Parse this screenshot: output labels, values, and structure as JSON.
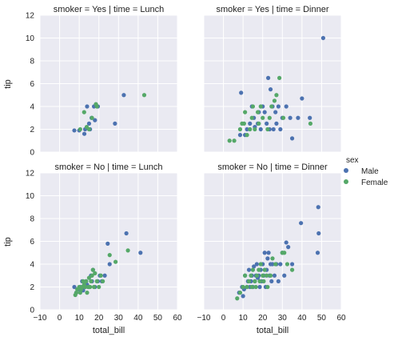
{
  "chart_data": {
    "type": "scatter",
    "grid": true,
    "sharex": true,
    "sharey": true,
    "xlim": [
      -10,
      60
    ],
    "ylim": [
      0,
      12
    ],
    "xticks": [
      "−10",
      "0",
      "10",
      "20",
      "30",
      "40",
      "50",
      "60"
    ],
    "yticks": [
      "0",
      "2",
      "4",
      "6",
      "8",
      "10",
      "12"
    ],
    "xlabel": "total_bill",
    "ylabel": "tip",
    "legend": {
      "title": "sex",
      "placement": "right",
      "entries": [
        {
          "name": "Male",
          "color": "#4c72b0"
        },
        {
          "name": "Female",
          "color": "#55a868"
        }
      ]
    },
    "panels": [
      {
        "title": "smoker = Yes | time = Lunch",
        "row": 0,
        "col": 0,
        "series": [
          {
            "name": "Male",
            "color": "#4c72b0",
            "x": [
              7.5,
              10.0,
              12.6,
              13.0,
              14.0,
              15.0,
              15.5,
              16.3,
              17.5,
              18.0,
              19.5,
              28.2,
              32.7
            ],
            "y": [
              1.9,
              1.9,
              1.6,
              2.0,
              4.0,
              2.5,
              2.0,
              3.0,
              4.0,
              2.8,
              4.0,
              2.5,
              5.0
            ]
          },
          {
            "name": "Female",
            "color": "#55a868",
            "x": [
              10.5,
              12.5,
              13.8,
              15.0,
              16.5,
              18.5,
              19.0,
              43.1
            ],
            "y": [
              2.0,
              3.5,
              2.2,
              2.0,
              3.0,
              4.2,
              4.0,
              5.0
            ]
          }
        ]
      },
      {
        "title": "smoker = Yes | time = Dinner",
        "row": 0,
        "col": 1,
        "series": [
          {
            "name": "Male",
            "color": "#4c72b0",
            "x": [
              8.5,
              9.0,
              11.0,
              12.0,
              13.5,
              14.5,
              15.5,
              16.0,
              17.5,
              18.0,
              19.0,
              20.0,
              21.0,
              22.0,
              22.8,
              23.5,
              24.0,
              25.0,
              25.5,
              26.5,
              27.0,
              28.0,
              29.0,
              30.0,
              32.0,
              34.0,
              35.0,
              38.0,
              40.0,
              44.0,
              50.8
            ],
            "y": [
              1.5,
              5.2,
              1.5,
              2.0,
              2.5,
              4.0,
              3.0,
              2.2,
              2.5,
              3.5,
              2.0,
              4.0,
              3.5,
              2.5,
              6.5,
              2.0,
              5.5,
              4.0,
              2.0,
              3.5,
              2.5,
              4.0,
              2.0,
              3.0,
              4.0,
              3.0,
              1.2,
              3.0,
              4.7,
              3.0,
              10.0
            ]
          },
          {
            "name": "Female",
            "color": "#55a868",
            "x": [
              3.1,
              5.5,
              8.5,
              9.5,
              10.5,
              11.0,
              12.0,
              13.5,
              14.5,
              15.0,
              16.0,
              17.5,
              18.0,
              19.0,
              20.0,
              22.5,
              23.5,
              24.5,
              26.0,
              27.0,
              28.5,
              30.5,
              44.3
            ],
            "y": [
              1.0,
              1.0,
              2.0,
              2.5,
              2.5,
              3.5,
              1.5,
              2.0,
              3.0,
              4.0,
              2.0,
              3.5,
              2.5,
              4.0,
              3.0,
              2.0,
              3.0,
              4.0,
              4.5,
              5.0,
              6.5,
              3.0,
              2.5
            ]
          }
        ]
      },
      {
        "title": "smoker = No | time = Lunch",
        "row": 1,
        "col": 0,
        "series": [
          {
            "name": "Male",
            "color": "#4c72b0",
            "x": [
              7.5,
              8.5,
              9.5,
              10.5,
              11.5,
              12.0,
              13.0,
              13.5,
              14.0,
              15.0,
              16.0,
              16.5,
              17.0,
              18.0,
              19.5,
              20.5,
              21.5,
              23.0,
              24.5,
              25.5,
              34.0,
              41.2
            ],
            "y": [
              2.0,
              1.5,
              1.8,
              2.0,
              2.5,
              1.7,
              2.0,
              2.5,
              2.2,
              2.0,
              3.0,
              2.5,
              3.5,
              2.0,
              2.5,
              3.0,
              2.5,
              3.0,
              5.8,
              4.0,
              6.7,
              5.0
            ]
          },
          {
            "name": "Female",
            "color": "#55a868",
            "x": [
              8.0,
              8.5,
              9.0,
              10.0,
              10.5,
              11.0,
              11.5,
              12.0,
              12.5,
              13.0,
              13.5,
              14.0,
              14.5,
              15.0,
              15.5,
              16.0,
              16.5,
              17.0,
              17.5,
              18.0,
              19.0,
              20.0,
              21.0,
              22.0,
              25.5,
              28.5,
              34.8
            ],
            "y": [
              1.3,
              1.5,
              1.8,
              2.0,
              1.5,
              1.8,
              2.0,
              2.5,
              2.2,
              2.0,
              2.5,
              1.5,
              2.0,
              2.8,
              2.0,
              2.5,
              3.0,
              3.5,
              2.0,
              3.2,
              2.5,
              2.0,
              3.0,
              2.5,
              4.8,
              4.2,
              5.2
            ]
          }
        ]
      },
      {
        "title": "smoker = No | time = Dinner",
        "row": 1,
        "col": 1,
        "series": [
          {
            "name": "Male",
            "color": "#4c72b0",
            "x": [
              8.0,
              9.5,
              10.0,
              10.5,
              11.0,
              12.0,
              12.5,
              13.0,
              13.5,
              14.0,
              14.5,
              15.0,
              15.5,
              16.0,
              16.5,
              17.0,
              17.5,
              18.0,
              18.5,
              19.0,
              19.5,
              20.0,
              20.5,
              21.0,
              21.5,
              22.0,
              22.5,
              23.0,
              23.5,
              24.0,
              24.5,
              25.0,
              26.0,
              27.0,
              28.0,
              29.0,
              30.0,
              31.0,
              32.0,
              33.0,
              35.0,
              39.5,
              48.3,
              48.5,
              48.0
            ],
            "y": [
              1.5,
              2.0,
              1.2,
              1.8,
              3.0,
              2.0,
              2.5,
              3.5,
              2.0,
              2.5,
              3.0,
              2.0,
              3.8,
              2.5,
              3.0,
              4.0,
              2.8,
              3.0,
              2.0,
              3.5,
              2.5,
              4.0,
              3.0,
              5.0,
              2.0,
              3.5,
              4.5,
              5.0,
              3.0,
              4.0,
              2.5,
              4.0,
              3.0,
              4.0,
              2.5,
              4.0,
              5.0,
              3.0,
              5.9,
              5.5,
              4.0,
              7.6,
              9.0,
              6.7,
              5.0
            ]
          },
          {
            "name": "Female",
            "color": "#55a868",
            "x": [
              7.0,
              8.5,
              10.0,
              11.0,
              12.0,
              13.0,
              14.0,
              14.5,
              15.0,
              16.0,
              16.5,
              17.0,
              18.0,
              18.5,
              19.0,
              20.0,
              20.5,
              21.0,
              22.0,
              22.5,
              24.0,
              25.0,
              26.5,
              30.0,
              31.0,
              32.5,
              35.0
            ],
            "y": [
              1.0,
              1.5,
              2.0,
              3.0,
              2.0,
              2.5,
              3.0,
              2.0,
              3.5,
              2.5,
              2.0,
              3.0,
              3.5,
              2.5,
              4.0,
              3.0,
              2.5,
              3.5,
              3.0,
              2.0,
              3.0,
              4.5,
              4.0,
              5.0,
              5.0,
              4.0,
              3.5
            ]
          }
        ]
      }
    ]
  }
}
